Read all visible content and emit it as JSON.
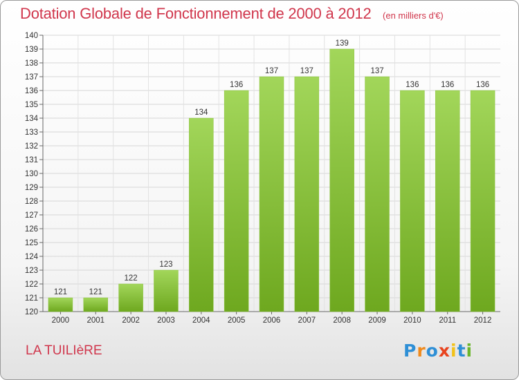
{
  "header": {
    "title": "Dotation Globale de Fonctionnement de 2000 à 2012",
    "unit": "(en milliers d'€)"
  },
  "footer": {
    "commune": "LA TUILIèRE",
    "logo": "Proxiti"
  },
  "colors": {
    "title": "#d0364c",
    "bar_light": "#a2d65a",
    "bar_dark": "#6ea81f",
    "logo_letters": [
      "#2e8fd6",
      "#f08a1c",
      "#2e8fd6",
      "#e8431e",
      "#f2c21a",
      "#2e8fd6",
      "#6bb62b"
    ]
  },
  "chart_data": {
    "type": "bar",
    "title": "Dotation Globale de Fonctionnement de 2000 à 2012",
    "subtitle": "(en milliers d'€)",
    "xlabel": "",
    "ylabel": "",
    "categories": [
      "2000",
      "2001",
      "2002",
      "2003",
      "2004",
      "2005",
      "2006",
      "2007",
      "2008",
      "2009",
      "2010",
      "2011",
      "2012"
    ],
    "values": [
      121,
      121,
      122,
      123,
      134,
      136,
      137,
      137,
      139,
      137,
      136,
      136,
      136
    ],
    "ylim": [
      120,
      140
    ],
    "yticks": [
      120,
      121,
      122,
      123,
      124,
      125,
      126,
      127,
      128,
      129,
      130,
      131,
      132,
      133,
      134,
      135,
      136,
      137,
      138,
      139,
      140
    ],
    "grid": true
  }
}
